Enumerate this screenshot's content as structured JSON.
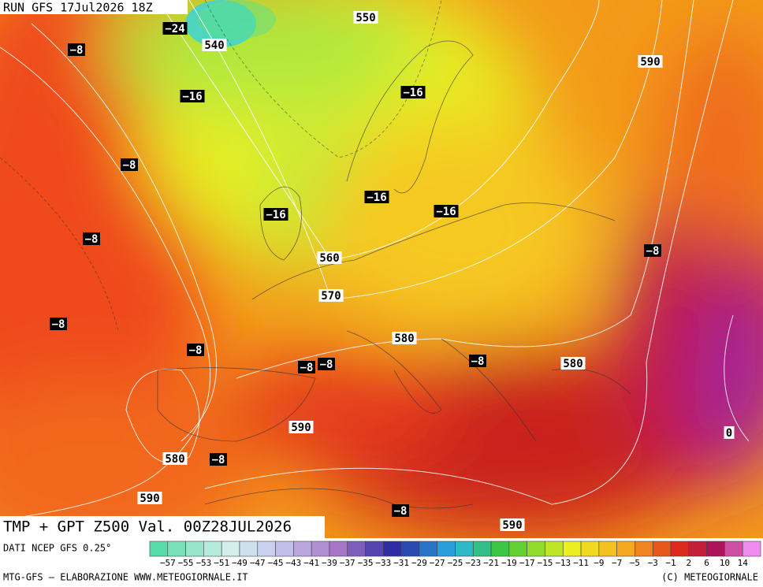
{
  "header": {
    "run": "RUN GFS 17Jul2026 18Z",
    "title": "TMP + GPT Z500 Val. 00Z28JUL2026"
  },
  "footer": {
    "source": "DATI NCEP GFS 0.25°",
    "credit": "MTG-GFS — ELABORAZIONE WWW.METEOGIORNALE.IT",
    "copyright": "(C) METEOGIORNALE"
  },
  "legend": {
    "labels": [
      "−57",
      "−55",
      "−53",
      "−51",
      "−49",
      "−47",
      "−45",
      "−43",
      "−41",
      "−39",
      "−37",
      "−35",
      "−33",
      "−31",
      "−29",
      "−27",
      "−25",
      "−23",
      "−21",
      "−19",
      "−17",
      "−15",
      "−13",
      "−11",
      "−9",
      "−7",
      "−5",
      "−3",
      "−1",
      "2",
      "6",
      "10",
      "14"
    ]
  },
  "map": {
    "temperature_labels": [
      "−24",
      "−8",
      "−16",
      "−16",
      "−8",
      "−16",
      "−16",
      "−16",
      "−8",
      "−8",
      "−8",
      "−8",
      "−8",
      "−8",
      "−8",
      "−8",
      "−8",
      "0"
    ],
    "height_labels": [
      "550",
      "540",
      "590",
      "560",
      "570",
      "580",
      "580",
      "590",
      "580",
      "590",
      "590"
    ]
  }
}
